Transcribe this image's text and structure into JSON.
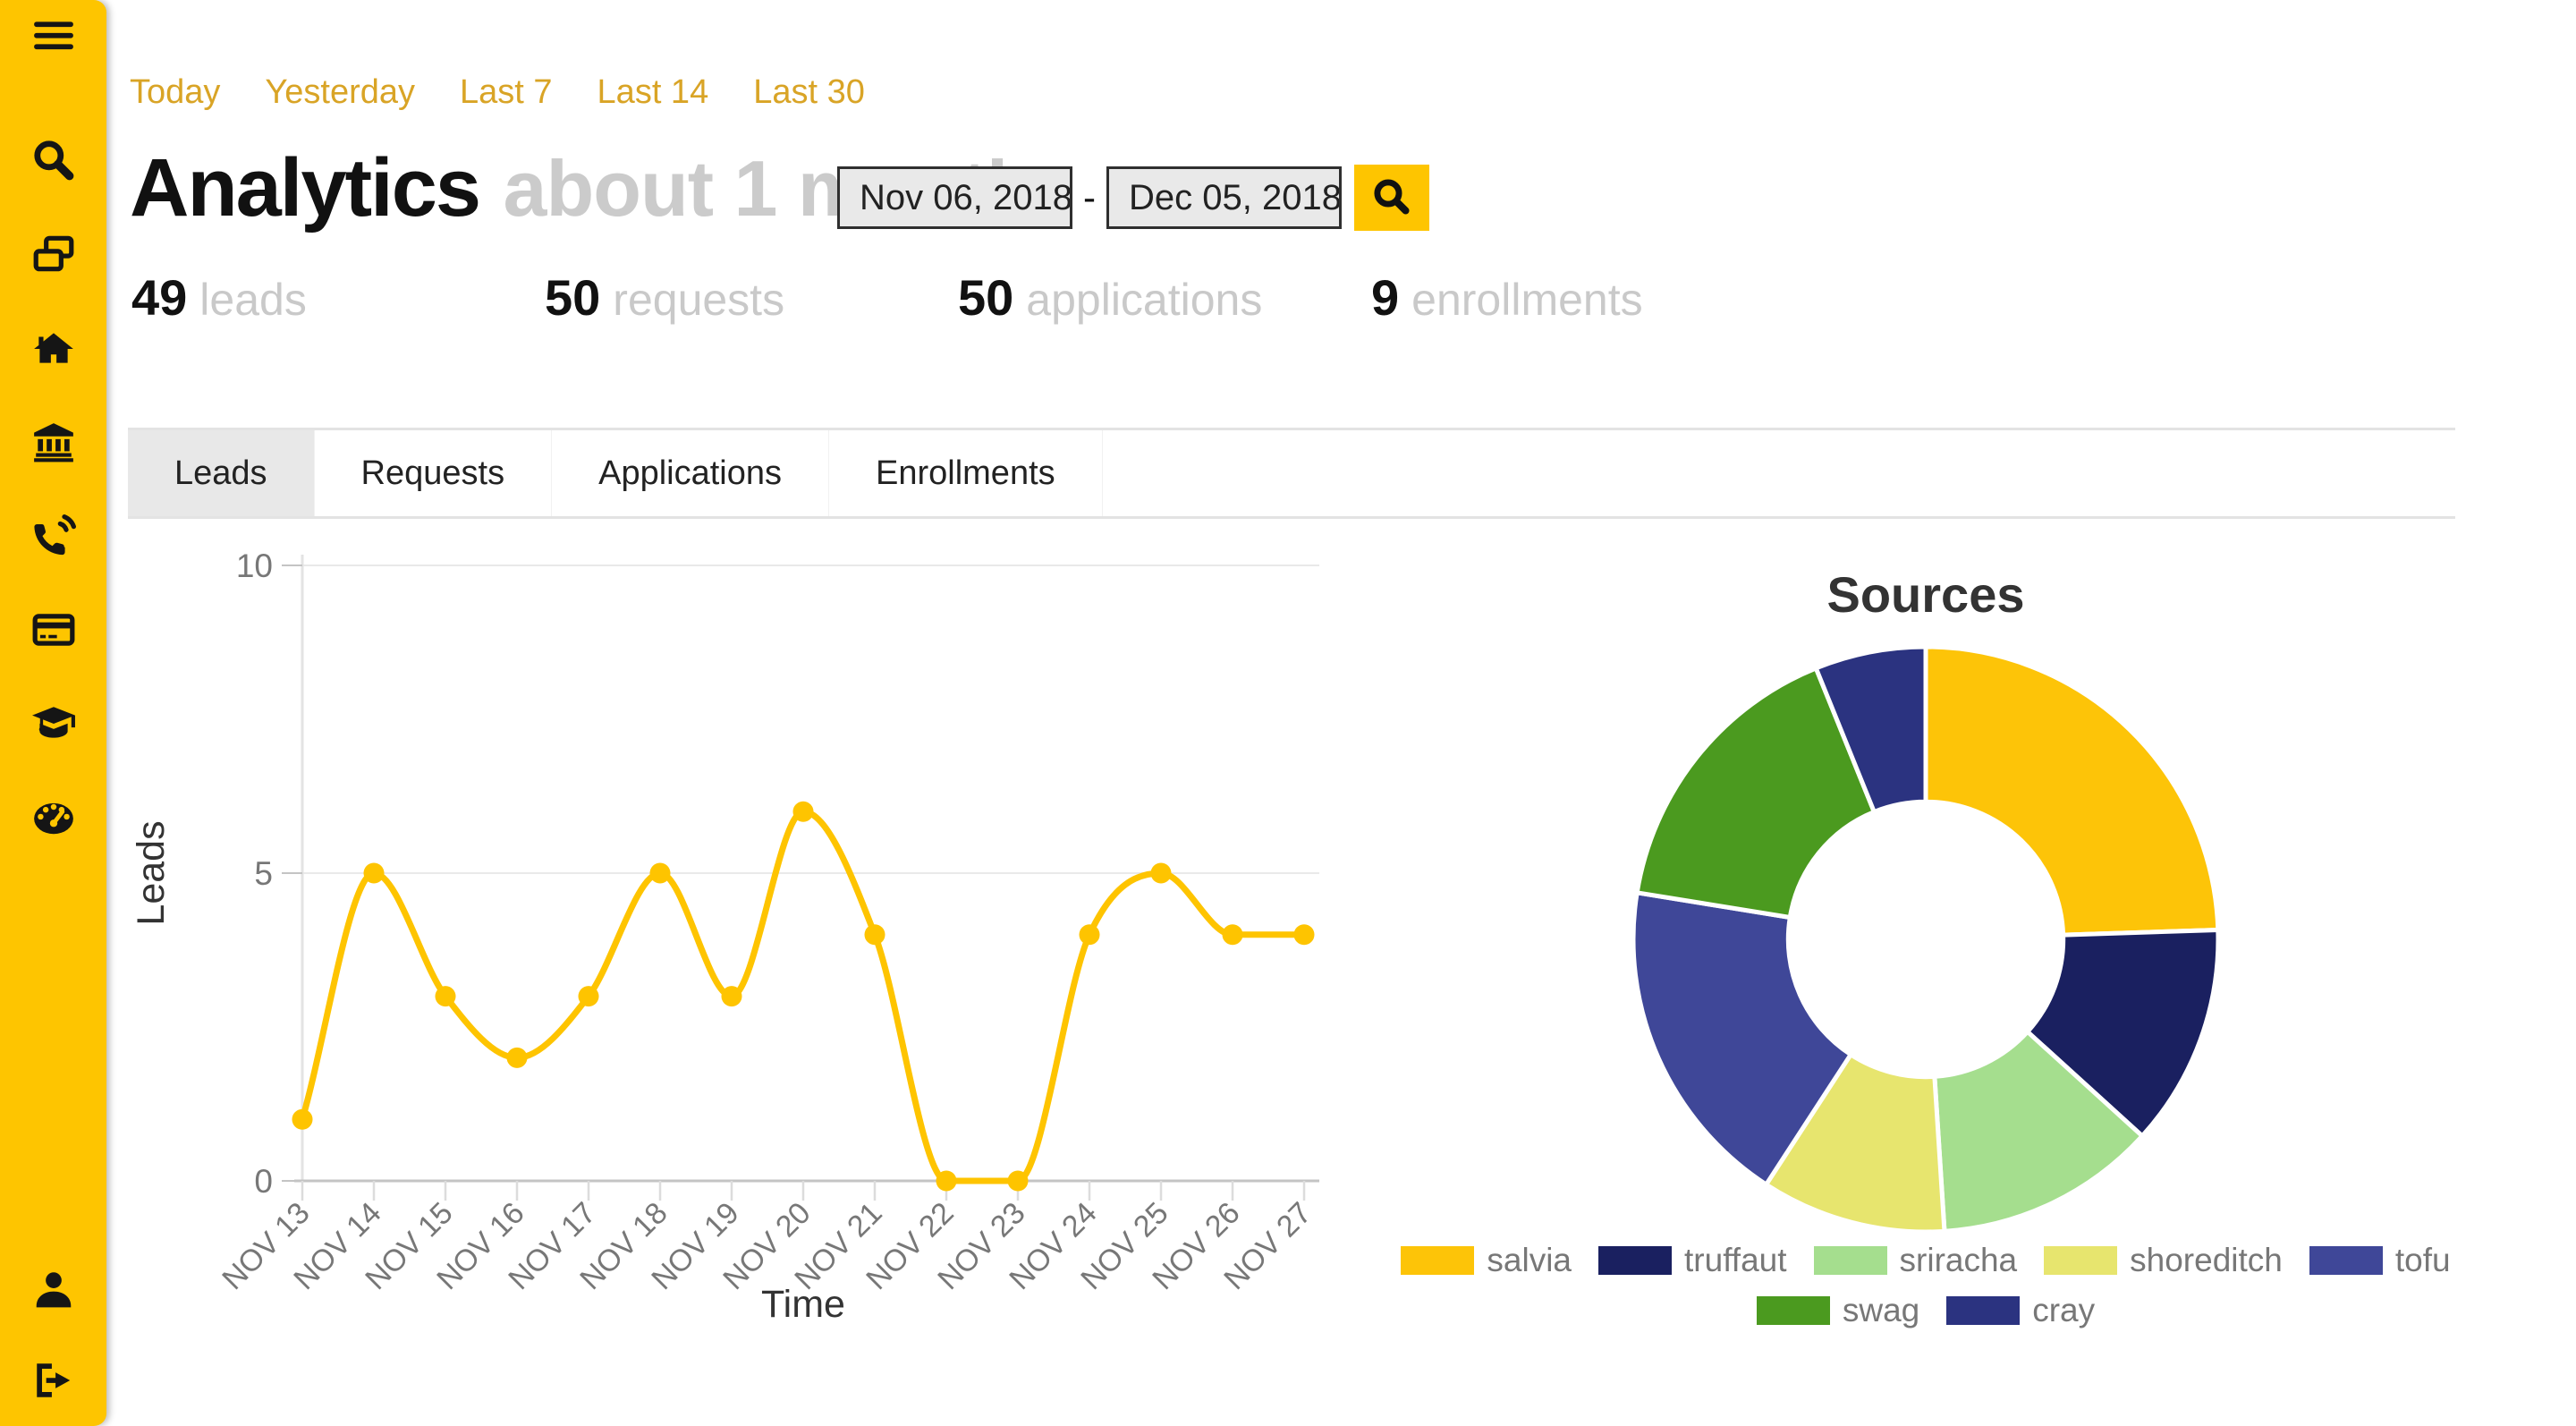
{
  "sidebar": {
    "color": "#FEC500",
    "icons": [
      "menu",
      "search",
      "pages",
      "home",
      "institution",
      "phone",
      "credit-card",
      "graduation-cap",
      "dashboard",
      "user",
      "sign-out"
    ]
  },
  "quick_ranges": {
    "items": [
      "Today",
      "Yesterday",
      "Last 7",
      "Last 14",
      "Last 30"
    ]
  },
  "header": {
    "title": "Analytics",
    "subtitle": "about 1 month",
    "date_from": "Nov 06, 2018",
    "date_to": "Dec 05, 2018",
    "separator": "-"
  },
  "stats": {
    "items": [
      {
        "value": "49",
        "label": "leads"
      },
      {
        "value": "50",
        "label": "requests"
      },
      {
        "value": "50",
        "label": "applications"
      },
      {
        "value": "9",
        "label": "enrollments"
      }
    ]
  },
  "tabs": {
    "items": [
      {
        "label": "Leads",
        "active": true
      },
      {
        "label": "Requests",
        "active": false
      },
      {
        "label": "Applications",
        "active": false
      },
      {
        "label": "Enrollments",
        "active": false
      }
    ]
  },
  "chart_data": [
    {
      "type": "line",
      "title": "",
      "xlabel": "Time",
      "ylabel": "Leads",
      "x": [
        "NOV 13",
        "NOV 14",
        "NOV 15",
        "NOV 16",
        "NOV 17",
        "NOV 18",
        "NOV 19",
        "NOV 20",
        "NOV 21",
        "NOV 22",
        "NOV 23",
        "NOV 24",
        "NOV 25",
        "NOV 26",
        "NOV 27"
      ],
      "series": [
        {
          "name": "Leads",
          "values": [
            1,
            5,
            3,
            2,
            3,
            5,
            3,
            6,
            4,
            0,
            0,
            4,
            5,
            4,
            4
          ],
          "color": "#FEC400"
        }
      ],
      "ylim": [
        0,
        10
      ],
      "yticks": [
        0,
        5,
        10
      ],
      "grid": true,
      "line_style": "smooth",
      "point_style": "circle"
    },
    {
      "type": "pie",
      "subtype": "donut",
      "title": "Sources",
      "labels": [
        "salvia",
        "truffaut",
        "sriracha",
        "shoreditch",
        "tofu",
        "swag",
        "cray"
      ],
      "values": [
        12,
        6,
        6,
        5,
        9,
        8,
        3
      ],
      "colors": [
        "#FDC408",
        "#1A2060",
        "#A5DE8E",
        "#E7E56E",
        "#3F4798",
        "#4B9A1F",
        "#2B3380"
      ],
      "total": 49,
      "inner_radius_ratio": 0.47,
      "legend_position": "bottom"
    }
  ]
}
